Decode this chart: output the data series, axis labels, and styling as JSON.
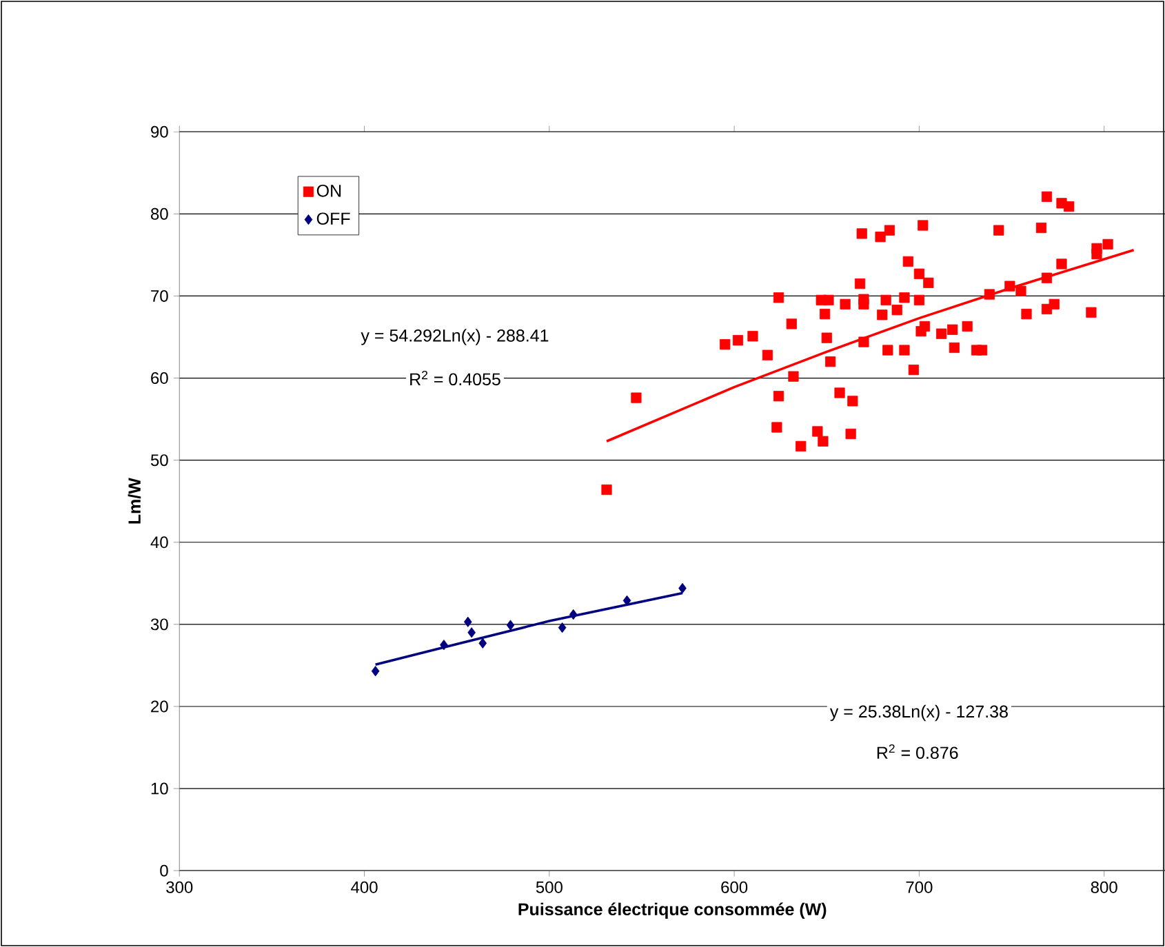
{
  "chart_data": {
    "type": "scatter",
    "xlabel": "Puissance électrique consommée (W)",
    "ylabel": "Lm/W",
    "xlim": [
      300,
      833
    ],
    "ylim": [
      0,
      90
    ],
    "xticks": [
      300,
      400,
      500,
      600,
      700,
      800
    ],
    "yticks": [
      0,
      10,
      20,
      30,
      40,
      50,
      60,
      70,
      80,
      90
    ],
    "grid": "y",
    "legend": "top left",
    "series": [
      {
        "name": "ON",
        "color": "#ff0000",
        "marker": "square",
        "x": [
          669,
          679,
          668,
          624,
          647,
          651,
          649,
          660,
          670,
          670,
          682,
          631,
          595,
          602,
          610,
          618,
          650,
          670,
          652,
          632,
          624,
          657,
          664,
          547,
          623,
          645,
          648,
          663,
          636,
          531,
          769,
          777,
          781,
          684,
          702,
          743,
          766,
          694,
          700,
          705,
          796,
          802,
          796,
          777,
          769,
          749,
          755,
          692,
          700,
          680,
          688,
          738,
          758,
          769,
          773,
          793,
          701,
          703,
          712,
          718,
          726,
          683,
          692,
          719,
          731,
          734,
          697
        ],
        "values": [
          77.6,
          77.2,
          71.5,
          69.8,
          69.5,
          69.5,
          67.8,
          69.0,
          69.6,
          69.0,
          69.5,
          66.6,
          64.1,
          64.6,
          65.1,
          62.8,
          64.9,
          64.4,
          62.0,
          60.2,
          57.8,
          58.2,
          57.2,
          57.6,
          54.0,
          53.5,
          52.3,
          53.2,
          51.7,
          46.4,
          82.1,
          81.3,
          80.9,
          78.0,
          78.6,
          78.0,
          78.3,
          74.2,
          72.7,
          71.6,
          75.8,
          76.3,
          75.1,
          73.9,
          72.2,
          71.2,
          70.6,
          69.8,
          69.5,
          67.7,
          68.3,
          70.2,
          67.8,
          68.4,
          69.0,
          68.0,
          65.7,
          66.3,
          65.4,
          65.9,
          66.3,
          63.4,
          63.4,
          63.7,
          63.4,
          63.4,
          61.0
        ]
      },
      {
        "name": "OFF",
        "color": "#000080",
        "marker": "diamond",
        "x": [
          406,
          443,
          456,
          458,
          464,
          479,
          507,
          513,
          542,
          572
        ],
        "values": [
          24.3,
          27.5,
          30.3,
          29.0,
          27.7,
          29.9,
          29.6,
          31.2,
          32.9,
          34.4
        ]
      },
      {
        "type": "line",
        "color": "#ff0000",
        "x": [
          531,
          600,
          650,
          700,
          750,
          816
        ],
        "values": [
          52.3,
          58.9,
          63.2,
          67.3,
          71.0,
          75.6
        ]
      },
      {
        "type": "line",
        "color": "#000080",
        "x": [
          406,
          450,
          500,
          540,
          572
        ],
        "values": [
          25.1,
          27.6,
          30.4,
          32.3,
          33.8
        ]
      }
    ],
    "annotations": [
      "y = 54.292Ln(x) - 288.41",
      "R$^{2}$ = 0.4055",
      "y = 25.38Ln(x) - 127.38",
      "R$^{2}$ = 0.876"
    ]
  }
}
